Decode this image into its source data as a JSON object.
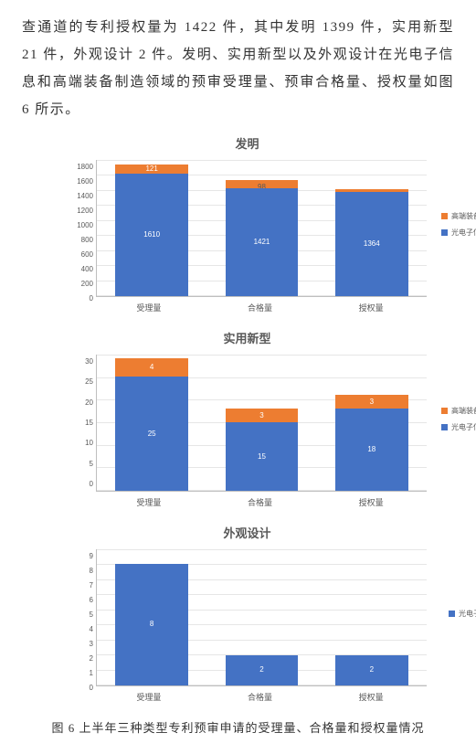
{
  "colors": {
    "blue": "#4472c4",
    "orange": "#ed7d31",
    "grid": "#e6e6e6",
    "axis": "#bfbfbf",
    "text": "#595959"
  },
  "paragraph": "查通道的专利授权量为 1422 件，其中发明 1399 件，实用新型 21 件，外观设计 2 件。发明、实用新型以及外观设计在光电子信息和高端装备制造领域的预审受理量、预审合格量、授权量如图 6 所示。",
  "caption": "图 6  上半年三种类型专利预审申请的受理量、合格量和授权量情况",
  "legend": {
    "orange_label": "高端装备制造",
    "blue_label": "光电子信息"
  },
  "charts": [
    {
      "id": "invention",
      "title": "发明",
      "ymax": 1800,
      "ystep": 200,
      "categories": [
        "受理量",
        "合格量",
        "授权量"
      ],
      "series_blue": [
        1610,
        1421,
        1364
      ],
      "series_orange": [
        121,
        98,
        35
      ],
      "show_orange_legend": true
    },
    {
      "id": "utility",
      "title": "实用新型",
      "ymax": 30,
      "ystep": 5,
      "categories": [
        "受理量",
        "合格量",
        "授权量"
      ],
      "series_blue": [
        25,
        15,
        18
      ],
      "series_orange": [
        4,
        3,
        3
      ],
      "show_orange_legend": true
    },
    {
      "id": "design",
      "title": "外观设计",
      "ymax": 9,
      "ystep": 1,
      "categories": [
        "受理量",
        "合格量",
        "授权量"
      ],
      "series_blue": [
        8,
        2,
        2
      ],
      "series_orange": [
        0,
        0,
        0
      ],
      "show_orange_legend": false
    }
  ]
}
